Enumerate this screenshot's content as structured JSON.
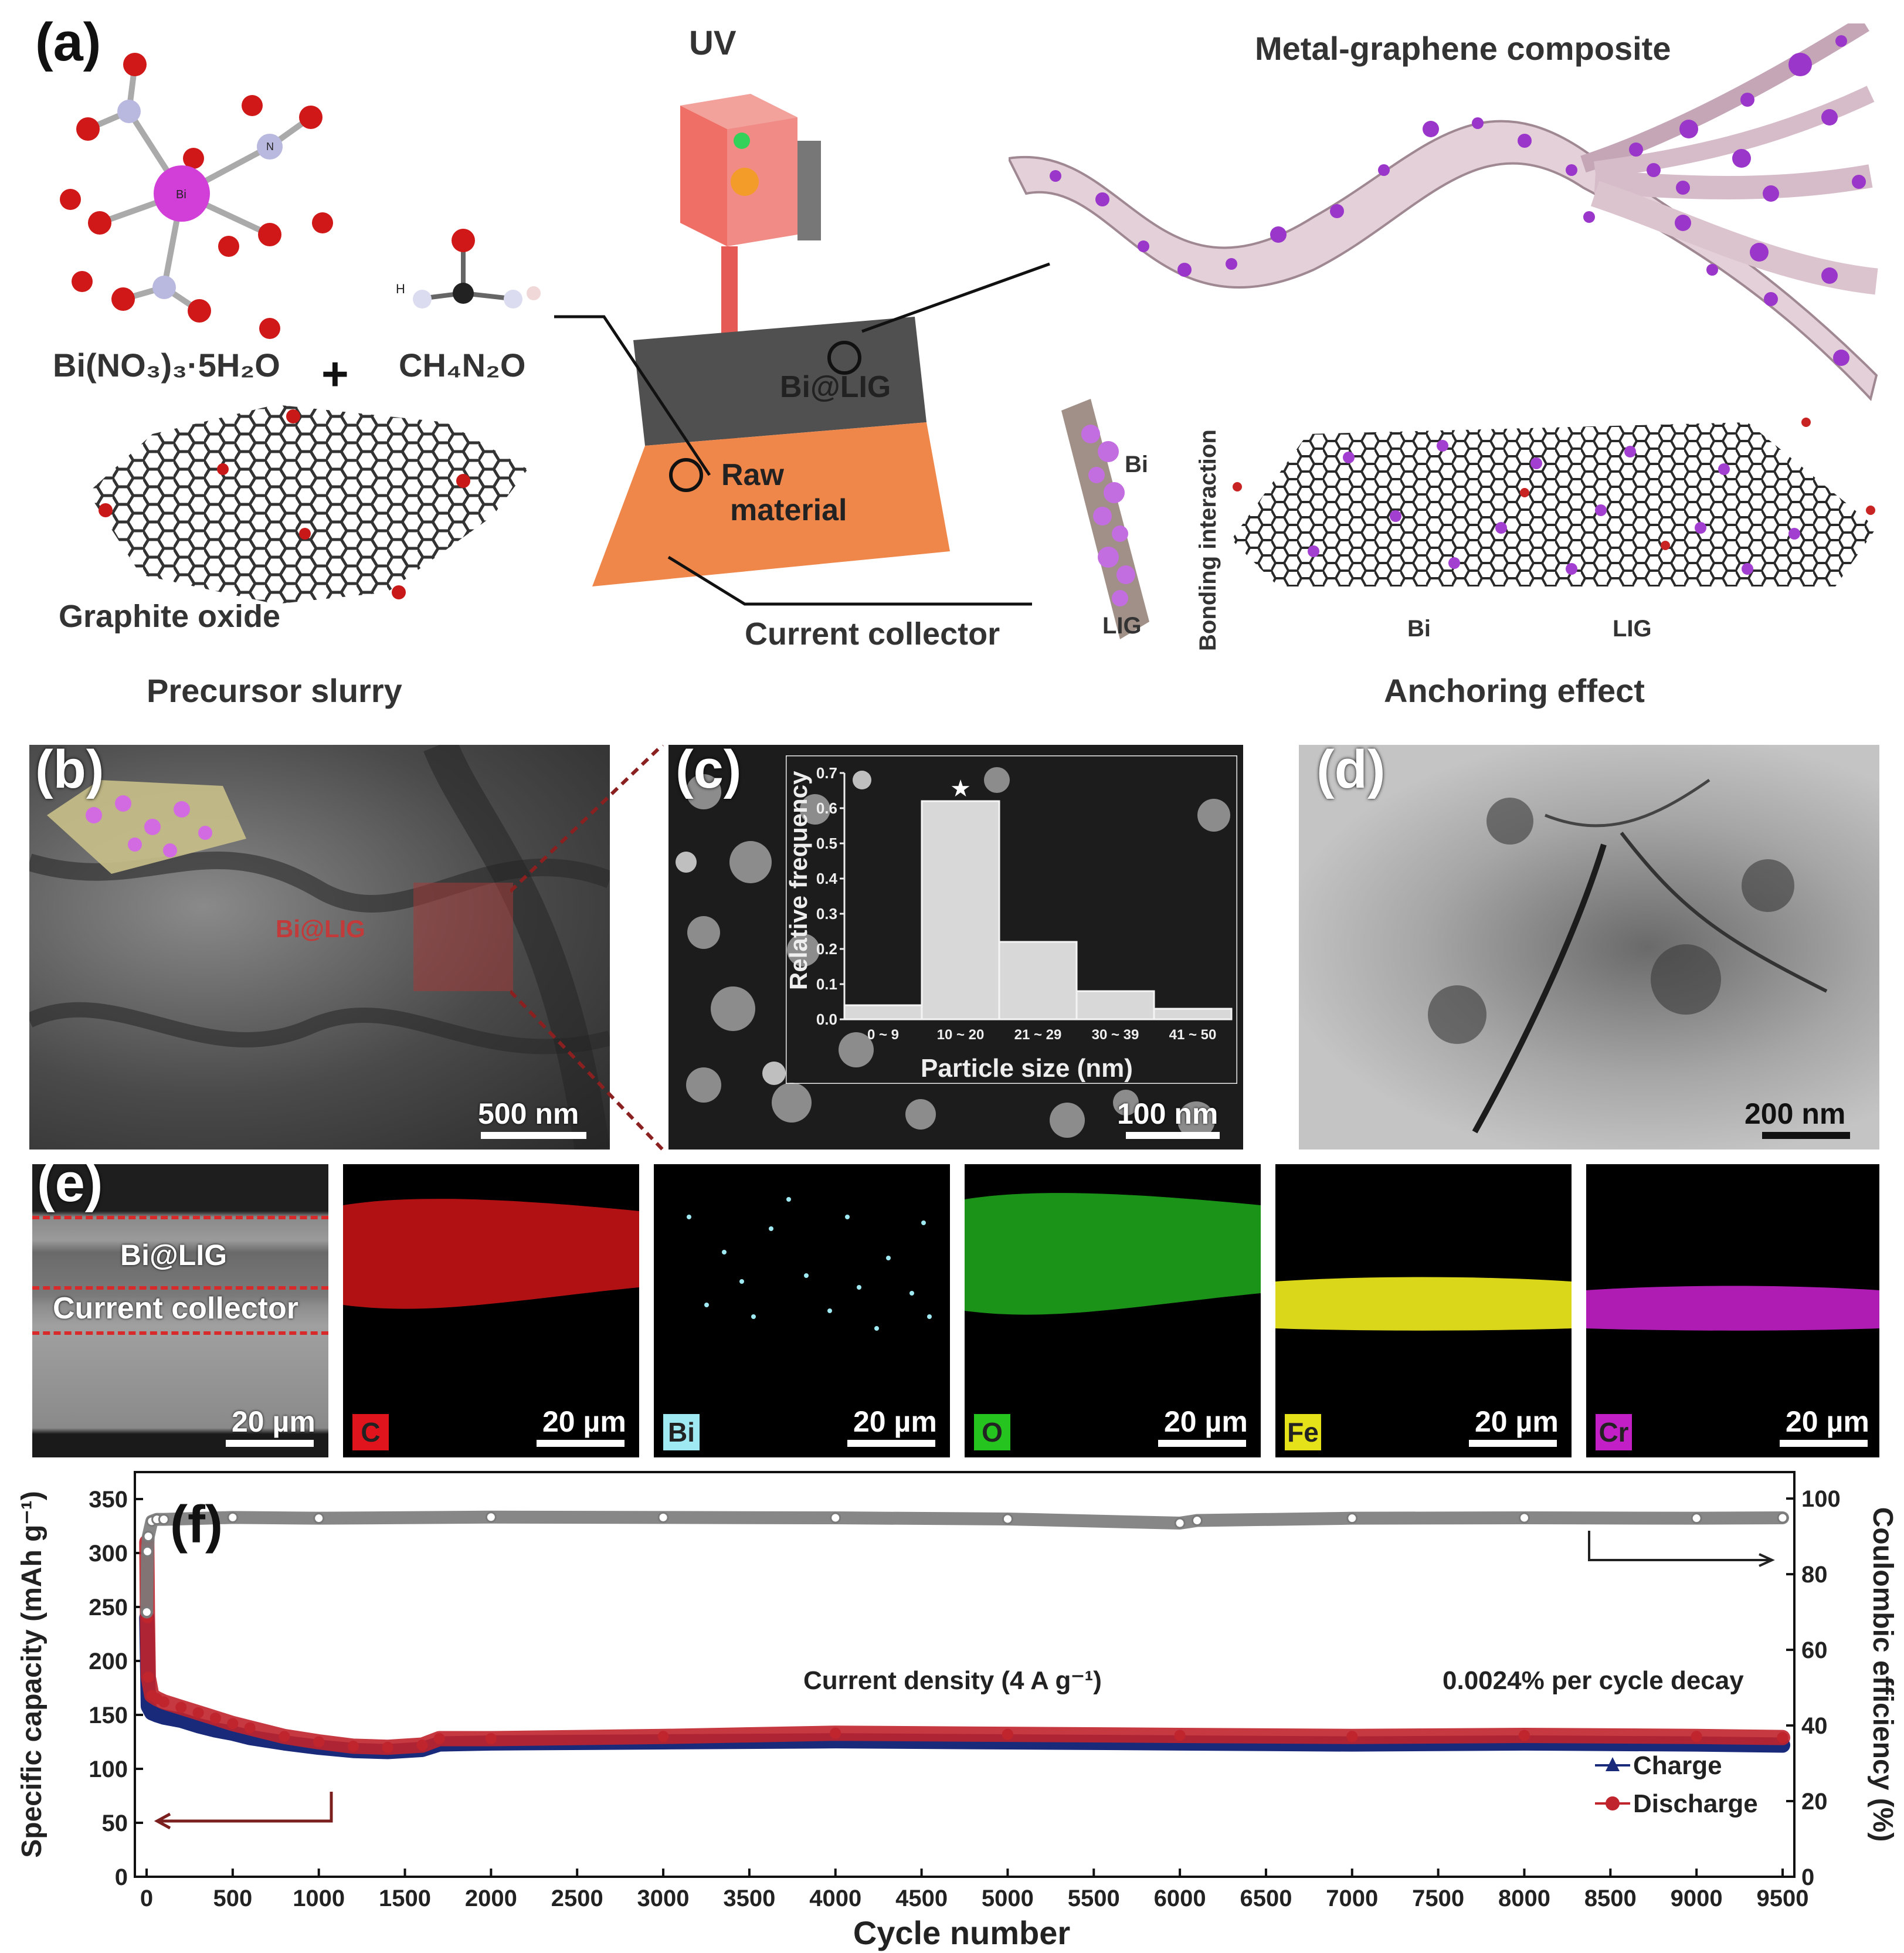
{
  "panel_a": {
    "label": "(a)",
    "formula_bi": "Bi(NO₃)₃·5H₂O",
    "formula_urea": "CH₄N₂O",
    "plus": "+",
    "atom_bi": "Bi",
    "atom_n": "N",
    "atom_h": "H",
    "graphite_oxide": "Graphite oxide",
    "precursor_slurry": "Precursor slurry",
    "uv": "UV",
    "bi_lig": "Bi@LIG",
    "raw_material_1": "Raw",
    "raw_material_2": "material",
    "current_collector": "Current collector",
    "composite_title": "Metal-graphene composite",
    "bonding_interaction": "Bonding interaction",
    "side_bi": "Bi",
    "side_lig": "LIG",
    "arrow_bi": "Bi",
    "arrow_lig": "LIG",
    "anchoring_effect": "Anchoring effect"
  },
  "panel_b": {
    "label": "(b)",
    "overlay": "Bi@LIG",
    "scale": "500 nm"
  },
  "panel_c": {
    "label": "(c)",
    "scale": "100 nm",
    "hist": {
      "ylabel": "Relative frequency",
      "xlabel": "Particle size (nm)",
      "categories": [
        "0 ~ 9",
        "10 ~ 20",
        "21 ~ 29",
        "30 ~ 39",
        "41 ~ 50"
      ],
      "values": [
        0.04,
        0.62,
        0.22,
        0.08,
        0.03
      ],
      "yticks": [
        "0.0",
        "0.1",
        "0.2",
        "0.3",
        "0.4",
        "0.5",
        "0.6",
        "0.7"
      ],
      "star": "★"
    }
  },
  "panel_d": {
    "label": "(d)",
    "scale": "200 nm"
  },
  "panel_e": {
    "label": "(e)",
    "layer_top": "Bi@LIG",
    "layer_bottom": "Current collector",
    "scale": "20 µm",
    "maps": [
      {
        "element": "C",
        "color": "#e0141c",
        "tag_bg": "#e0141c",
        "scale": "20 µm"
      },
      {
        "element": "Bi",
        "color": "#9fe9f2",
        "tag_bg": "#9fe9f2",
        "scale": "20 µm"
      },
      {
        "element": "O",
        "color": "#25c41f",
        "tag_bg": "#25c41f",
        "scale": "20 µm"
      },
      {
        "element": "Fe",
        "color": "#e6e21a",
        "tag_bg": "#e6e21a",
        "scale": "20 µm"
      },
      {
        "element": "Cr",
        "color": "#c21fc6",
        "tag_bg": "#c21fc6",
        "scale": "20 µm"
      }
    ]
  },
  "chart_data": {
    "type": "scatter",
    "label": "(f)",
    "xlabel": "Cycle number",
    "ylabel_left": "Specific capacity (mAh g⁻¹)",
    "ylabel_right": "Coulombic efficiency (%)",
    "xlim": [
      0,
      9500
    ],
    "ylim_left": [
      0,
      375
    ],
    "ylim_right": [
      0,
      107
    ],
    "xticks": [
      0,
      500,
      1000,
      1500,
      2000,
      2500,
      3000,
      3500,
      4000,
      4500,
      5000,
      5500,
      6000,
      6500,
      7000,
      7500,
      8000,
      8500,
      9000,
      9500
    ],
    "yticks_left": [
      0,
      50,
      100,
      150,
      200,
      250,
      300,
      350
    ],
    "yticks_right": [
      0,
      20,
      40,
      60,
      80,
      100
    ],
    "annotation_current": "Current density (4 A g⁻¹)",
    "annotation_decay": "0.0024% per cycle decay",
    "series": [
      {
        "name": "Charge",
        "axis": "left",
        "color": "#1a2a7a",
        "marker": "triangle",
        "x": [
          1,
          10,
          30,
          60,
          100,
          200,
          300,
          400,
          500,
          600,
          800,
          1000,
          1200,
          1400,
          1600,
          1700,
          2000,
          3000,
          4000,
          5000,
          6000,
          7000,
          8000,
          9000,
          9500
        ],
        "y": [
          240,
          158,
          152,
          150,
          148,
          145,
          140,
          136,
          133,
          129,
          124,
          120,
          117,
          116,
          118,
          123,
          124,
          125,
          126,
          125,
          124,
          123,
          124,
          123,
          122
        ]
      },
      {
        "name": "Discharge",
        "axis": "left",
        "color": "#c0242c",
        "marker": "circle",
        "x": [
          1,
          5,
          10,
          30,
          60,
          100,
          200,
          300,
          400,
          500,
          600,
          800,
          1000,
          1200,
          1400,
          1600,
          1700,
          2000,
          3000,
          4000,
          5000,
          6000,
          7000,
          8000,
          9000,
          9500
        ],
        "y": [
          310,
          240,
          185,
          168,
          165,
          162,
          157,
          152,
          147,
          142,
          138,
          130,
          125,
          121,
          120,
          122,
          128,
          128,
          130,
          133,
          132,
          131,
          130,
          131,
          130,
          129
        ]
      },
      {
        "name": "Coulombic efficiency",
        "axis": "right",
        "color": "#7a7a7a",
        "marker": "circle",
        "x": [
          1,
          5,
          10,
          30,
          60,
          100,
          500,
          1000,
          2000,
          3000,
          4000,
          5000,
          6000,
          6100,
          7000,
          8000,
          9000,
          9500
        ],
        "y": [
          70,
          86,
          90,
          94,
          94.5,
          94.5,
          95,
          94.8,
          95.1,
          95,
          94.9,
          94.6,
          93.5,
          94.2,
          94.8,
          94.9,
          94.8,
          94.9
        ]
      }
    ]
  }
}
